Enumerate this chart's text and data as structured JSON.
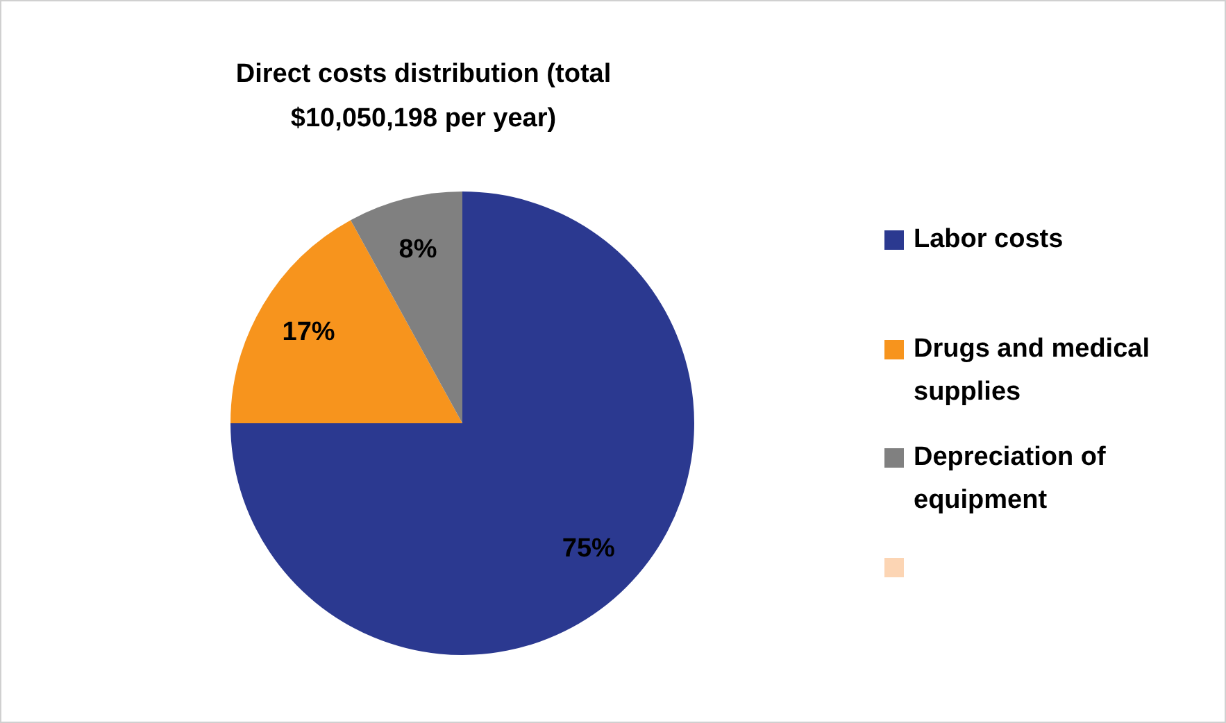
{
  "chart_data": {
    "type": "pie",
    "title": "Direct costs distribution (total $10,050,198 per year)",
    "categories": [
      "Labor costs",
      "Drugs and medical supplies",
      "Depreciation of equipment",
      null
    ],
    "values": [
      75,
      17,
      8,
      0
    ],
    "colors": [
      "#2b3990",
      "#f7941d",
      "#808080",
      "#fcd5b4"
    ],
    "value_labels": [
      "75%",
      "17%",
      "8%",
      null
    ],
    "legend": "right"
  }
}
